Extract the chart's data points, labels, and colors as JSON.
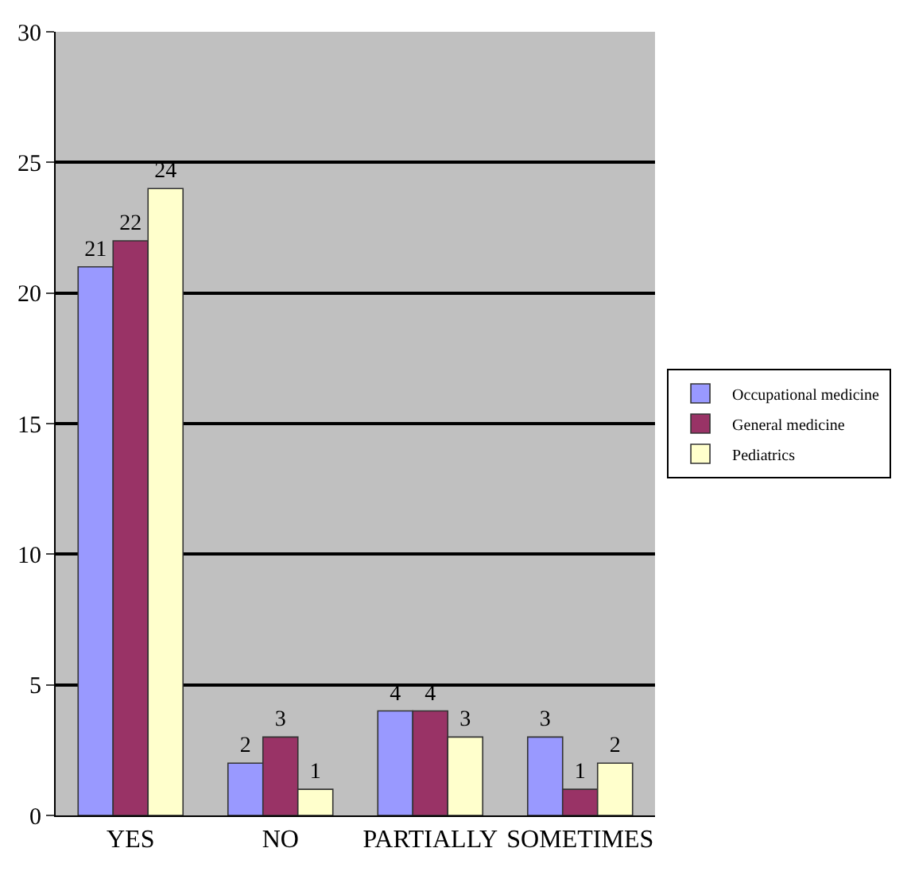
{
  "chart_data": {
    "type": "bar",
    "categories": [
      "YES",
      "NO",
      "PARTIALLY",
      "SOMETIMES"
    ],
    "series": [
      {
        "name": "Occupational medicine",
        "color": "#9999ff",
        "values": [
          21,
          2,
          4,
          3
        ]
      },
      {
        "name": "General medicine",
        "color": "#993366",
        "values": [
          22,
          3,
          4,
          1
        ]
      },
      {
        "name": "Pediatrics",
        "color": "#ffffcc",
        "values": [
          24,
          1,
          3,
          2
        ]
      }
    ],
    "ylim": [
      0,
      30
    ],
    "yticks": [
      0,
      5,
      10,
      15,
      20,
      25,
      30
    ],
    "grid": "y",
    "legend": "right",
    "data_labels": true
  }
}
